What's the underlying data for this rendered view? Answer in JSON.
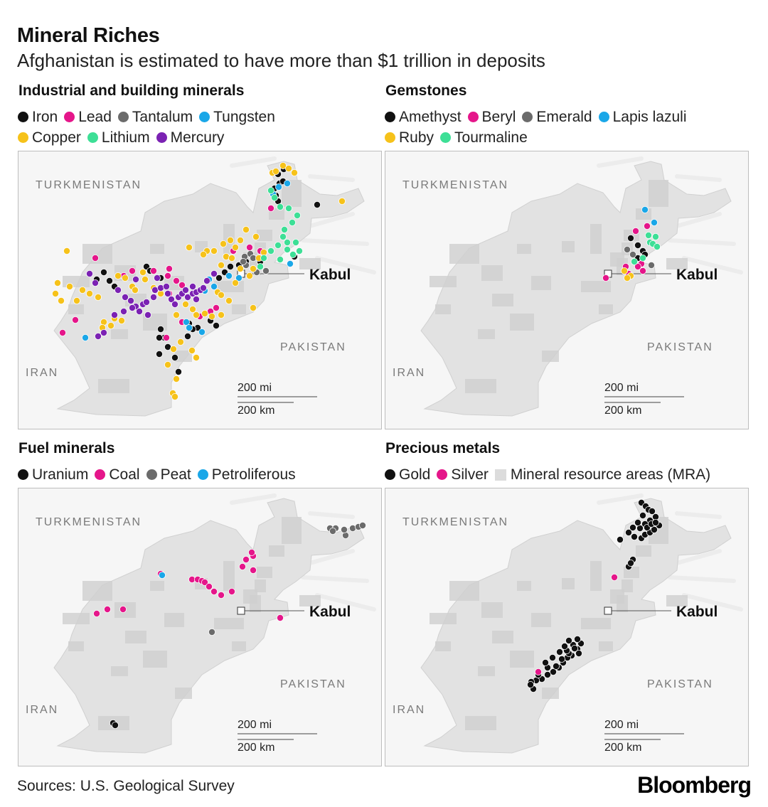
{
  "title": "Mineral Riches",
  "subtitle": "Afghanistan is estimated to have more than $1 trillion in deposits",
  "map_labels": {
    "turkmenistan": "TURKMENISTAN",
    "iran": "IRAN",
    "pakistan": "PAKISTAN",
    "kabul": "Kabul",
    "scale_mi": "200 mi",
    "scale_km": "200 km"
  },
  "panels": [
    {
      "id": "industrial",
      "title": "Industrial and building minerals",
      "legend_rows": [
        [
          {
            "label": "Iron",
            "color": "#111111"
          },
          {
            "label": "Lead",
            "color": "#e5168a"
          },
          {
            "label": "Tantalum",
            "color": "#6b6b6b"
          },
          {
            "label": "Tungsten",
            "color": "#1aa7e8"
          }
        ],
        [
          {
            "label": "Copper",
            "color": "#f6c21a"
          },
          {
            "label": "Lithium",
            "color": "#3ddf96"
          },
          {
            "label": "Mercury",
            "color": "#7b22b3"
          }
        ]
      ]
    },
    {
      "id": "gemstones",
      "title": "Gemstones",
      "legend_rows": [
        [
          {
            "label": "Amethyst",
            "color": "#111111"
          },
          {
            "label": "Beryl",
            "color": "#e5168a"
          },
          {
            "label": "Emerald",
            "color": "#6b6b6b"
          },
          {
            "label": "Lapis lazuli",
            "color": "#1aa7e8"
          }
        ],
        [
          {
            "label": "Ruby",
            "color": "#f6c21a"
          },
          {
            "label": "Tourmaline",
            "color": "#3ddf96"
          }
        ]
      ]
    },
    {
      "id": "fuel",
      "title": "Fuel minerals",
      "legend_rows": [
        [
          {
            "label": "Uranium",
            "color": "#111111"
          },
          {
            "label": "Coal",
            "color": "#e5168a"
          },
          {
            "label": "Peat",
            "color": "#6b6b6b"
          },
          {
            "label": "Petroliferous",
            "color": "#1aa7e8"
          }
        ]
      ]
    },
    {
      "id": "precious",
      "title": "Precious metals",
      "legend_rows": [
        [
          {
            "label": "Gold",
            "color": "#111111"
          },
          {
            "label": "Silver",
            "color": "#e5168a"
          },
          {
            "label": "Mineral resource areas (MRA)",
            "color": "#dcdcdc",
            "shape": "square"
          }
        ]
      ]
    }
  ],
  "footer": {
    "sources": "Sources: U.S. Geological Survey",
    "brand": "Bloomberg"
  }
}
